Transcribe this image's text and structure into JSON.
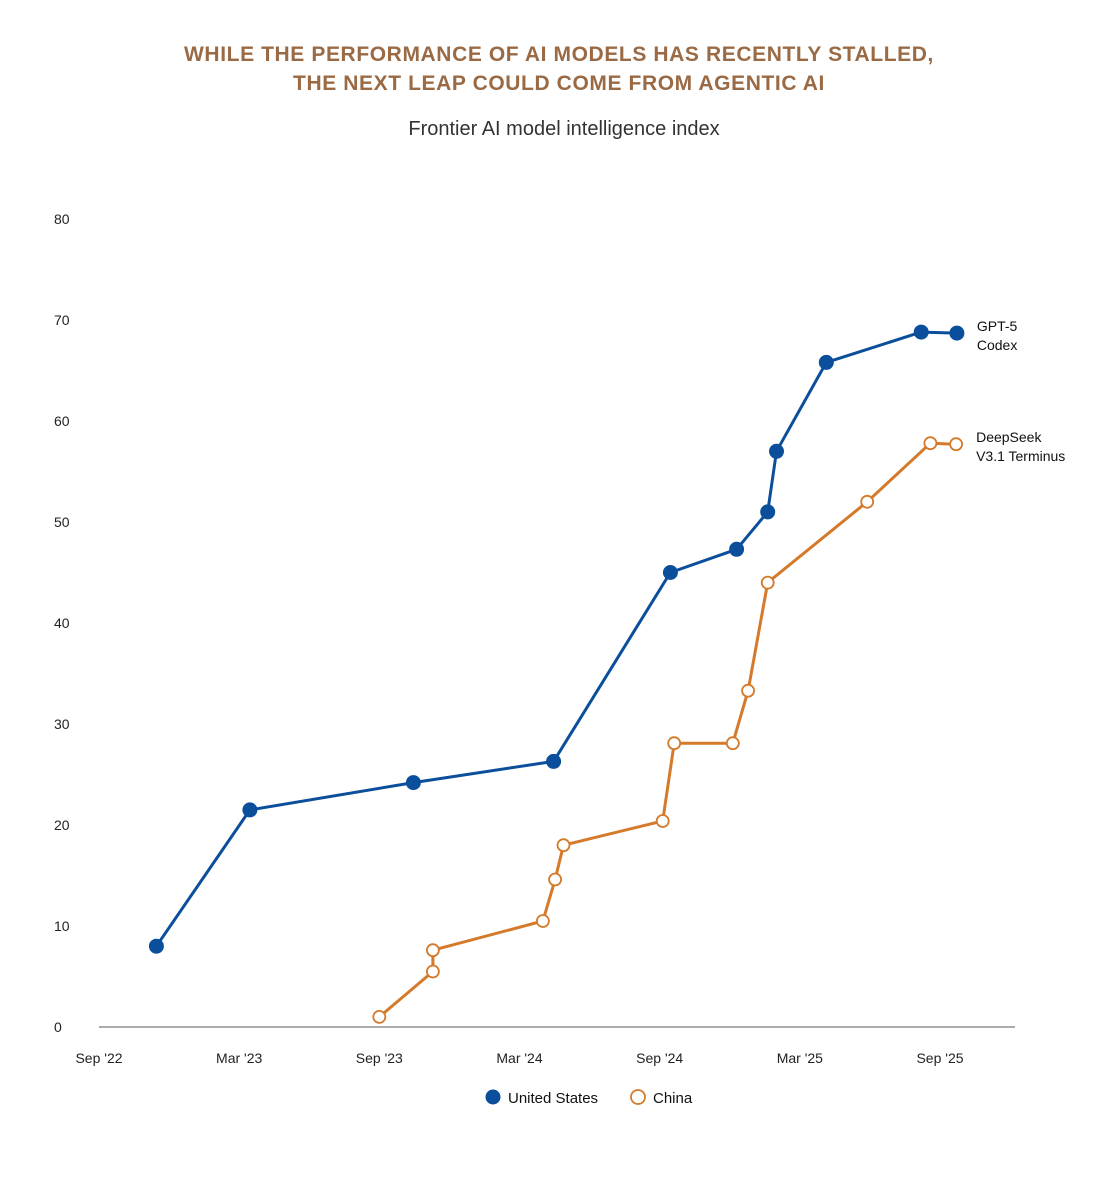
{
  "header": {
    "title_line1": "WHILE THE PERFORMANCE OF AI MODELS HAS RECENTLY STALLED,",
    "title_line2": "THE NEXT LEAP COULD COME FROM AGENTIC AI",
    "subtitle": "Frontier AI model intelligence index"
  },
  "chart_data": {
    "type": "line",
    "title": "WHILE THE PERFORMANCE OF AI MODELS HAS RECENTLY STALLED, THE NEXT LEAP COULD COME FROM AGENTIC AI",
    "subtitle": "Frontier AI model intelligence index",
    "xlabel": "",
    "ylabel": "",
    "ylim": [
      0,
      80
    ],
    "yticks": [
      0,
      10,
      20,
      30,
      40,
      50,
      60,
      70,
      80
    ],
    "xlim": [
      "2022-09",
      "2025-12"
    ],
    "xticks": [
      {
        "label": "Sep '22",
        "date": "2022-09"
      },
      {
        "label": "Mar '23",
        "date": "2023-03"
      },
      {
        "label": "Sep '23",
        "date": "2023-09"
      },
      {
        "label": "Mar '24",
        "date": "2024-03"
      },
      {
        "label": "Sep '24",
        "date": "2024-09"
      },
      {
        "label": "Mar '25",
        "date": "2025-03"
      },
      {
        "label": "Sep '25",
        "date": "2025-09"
      }
    ],
    "grid": false,
    "legend_position": "bottom",
    "series": [
      {
        "name": "United States",
        "color": "#0b4f9c",
        "marker": "filled-circle",
        "end_label": [
          "GPT-5",
          "Codex"
        ],
        "points": [
          {
            "x": "2022-11-15",
            "y": 8
          },
          {
            "x": "2023-03-15",
            "y": 21.5
          },
          {
            "x": "2023-10-15",
            "y": 24.2
          },
          {
            "x": "2024-04-15",
            "y": 26.3
          },
          {
            "x": "2024-09-15",
            "y": 45
          },
          {
            "x": "2024-12-10",
            "y": 47.3
          },
          {
            "x": "2025-01-20",
            "y": 51
          },
          {
            "x": "2025-02-01",
            "y": 57
          },
          {
            "x": "2025-04-05",
            "y": 65.8
          },
          {
            "x": "2025-08-07",
            "y": 68.8
          },
          {
            "x": "2025-09-23",
            "y": 68.7
          }
        ]
      },
      {
        "name": "China",
        "color": "#d47a2a",
        "marker": "hollow-circle",
        "end_label": [
          "DeepSeek",
          "V3.1 Terminus"
        ],
        "points": [
          {
            "x": "2023-09-01",
            "y": 1
          },
          {
            "x": "2023-11-10",
            "y": 5.5
          },
          {
            "x": "2023-11-10",
            "y": 7.6
          },
          {
            "x": "2024-04-01",
            "y": 10.5
          },
          {
            "x": "2024-04-17",
            "y": 14.6
          },
          {
            "x": "2024-04-28",
            "y": 18
          },
          {
            "x": "2024-09-05",
            "y": 20.4
          },
          {
            "x": "2024-09-20",
            "y": 28.1
          },
          {
            "x": "2024-12-05",
            "y": 28.1
          },
          {
            "x": "2024-12-25",
            "y": 33.3
          },
          {
            "x": "2025-01-20",
            "y": 44
          },
          {
            "x": "2025-05-28",
            "y": 52
          },
          {
            "x": "2025-08-19",
            "y": 57.8
          },
          {
            "x": "2025-09-22",
            "y": 57.7
          }
        ]
      }
    ]
  },
  "legend": {
    "items": [
      {
        "label": "United States",
        "marker": "filled-circle-icon",
        "color": "#0b4f9c"
      },
      {
        "label": "China",
        "marker": "hollow-circle-icon",
        "color": "#d47a2a"
      }
    ]
  }
}
